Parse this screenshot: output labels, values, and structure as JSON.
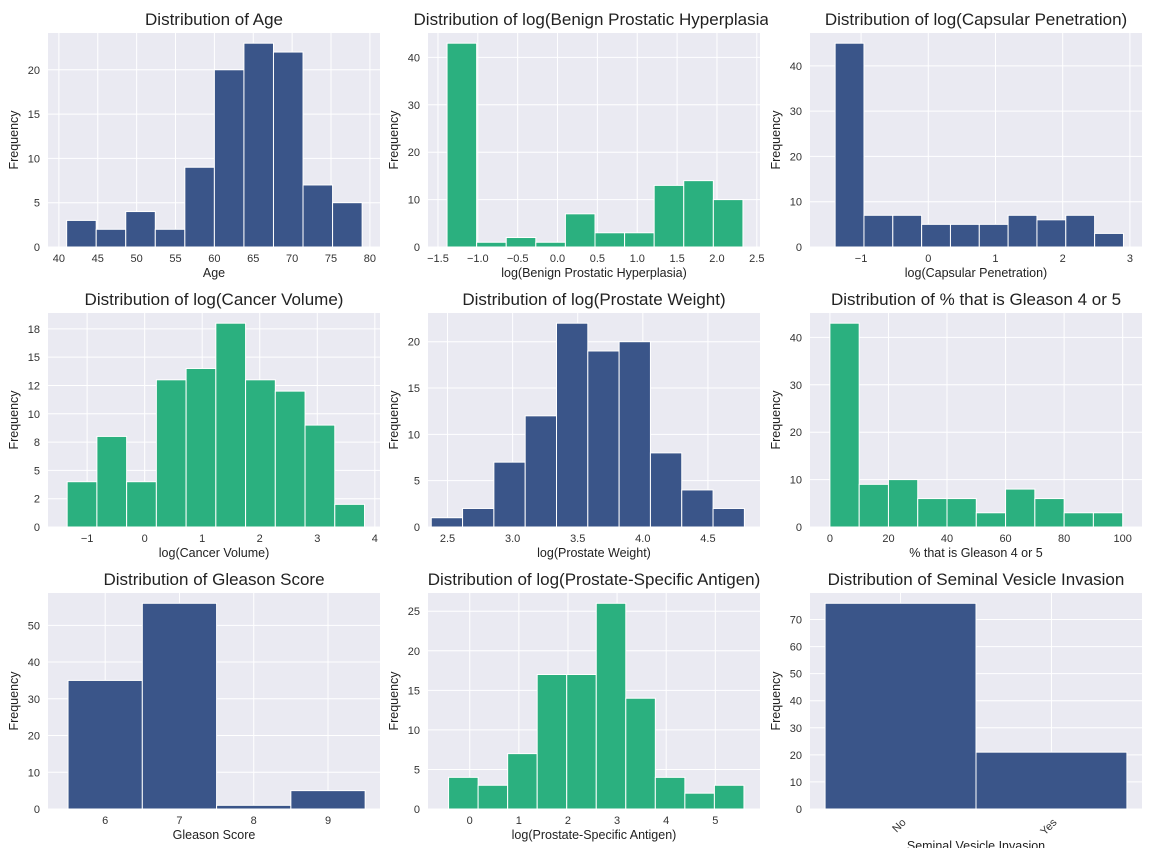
{
  "style": {
    "background": "#eaeaf2",
    "grid": "#ffffff",
    "blue": "#3a5589",
    "green": "#2bb07f"
  },
  "chart_data": [
    {
      "type": "bar",
      "title": "Distribution of Age",
      "xlabel": "Age",
      "ylabel": "Frequency",
      "color": "#3a5589",
      "bin_range": [
        41,
        79
      ],
      "values": [
        3,
        2,
        4,
        2,
        9,
        20,
        23,
        22,
        7,
        5
      ],
      "xlim": [
        38.6,
        81.3
      ],
      "ylim": [
        0,
        24.15
      ],
      "xticks": [
        40,
        45,
        50,
        55,
        60,
        65,
        70,
        75,
        80
      ],
      "xtick_labels": [
        "40",
        "45",
        "50",
        "55",
        "60",
        "65",
        "70",
        "75",
        "80"
      ],
      "yticks": [
        0,
        5,
        10,
        15,
        20
      ],
      "ytick_labels": [
        "0",
        "5",
        "10",
        "15",
        "20"
      ],
      "grid": true
    },
    {
      "type": "bar",
      "title": "Distribution of log(Benign Prostatic Hyperplasia)",
      "xlabel": "log(Benign Prostatic Hyperplasia)",
      "ylabel": "Frequency",
      "color": "#2bb07f",
      "bin_range": [
        -1.386,
        2.326
      ],
      "values": [
        43,
        1,
        2,
        1,
        7,
        3,
        3,
        13,
        14,
        10
      ],
      "xlim": [
        -1.625,
        2.54
      ],
      "ylim": [
        0,
        45.15
      ],
      "xticks": [
        -1.5,
        -1,
        -0.5,
        0,
        0.5,
        1,
        1.5,
        2,
        2.5
      ],
      "xtick_labels": [
        "−1.5",
        "−1.0",
        "−0.5",
        "0.0",
        "0.5",
        "1.0",
        "1.5",
        "2.0",
        "2.5"
      ],
      "yticks": [
        0,
        10,
        20,
        30,
        40
      ],
      "ytick_labels": [
        "0",
        "10",
        "20",
        "30",
        "40"
      ],
      "grid": true
    },
    {
      "type": "bar",
      "title": "Distribution of log(Capsular Penetration)",
      "xlabel": "log(Capsular Penetration)",
      "ylabel": "Frequency",
      "color": "#3a5589",
      "bin_range": [
        -1.386,
        2.904
      ],
      "values": [
        45,
        7,
        7,
        5,
        5,
        5,
        7,
        6,
        7,
        3
      ],
      "xlim": [
        -1.76,
        3.18
      ],
      "ylim": [
        0,
        47.25
      ],
      "xticks": [
        -1,
        0,
        1,
        2,
        3
      ],
      "xtick_labels": [
        "−1",
        "0",
        "1",
        "2",
        "3"
      ],
      "yticks": [
        0,
        10,
        20,
        30,
        40
      ],
      "ytick_labels": [
        "0",
        "10",
        "20",
        "30",
        "40"
      ],
      "grid": true
    },
    {
      "type": "bar",
      "title": "Distribution of log(Cancer Volume)",
      "xlabel": "log(Cancer Volume)",
      "ylabel": "Frequency",
      "color": "#2bb07f",
      "bin_range": [
        -1.347,
        3.821
      ],
      "values": [
        4,
        8,
        4,
        13,
        14,
        18,
        13,
        12,
        9,
        2
      ],
      "xlim": [
        -1.68,
        4.09
      ],
      "ylim": [
        0,
        18.9
      ],
      "xticks": [
        -1,
        0,
        1,
        2,
        3,
        4
      ],
      "xtick_labels": [
        "−1",
        "0",
        "1",
        "2",
        "3",
        "4"
      ],
      "yticks": [
        0,
        2.5,
        5,
        7.5,
        10,
        12.5,
        15,
        17.5
      ],
      "ytick_labels": [
        "0",
        "2",
        "5",
        "8",
        "10",
        "12",
        "15",
        "18"
      ],
      "grid": true
    },
    {
      "type": "bar",
      "title": "Distribution of log(Prostate Weight)",
      "xlabel": "log(Prostate Weight)",
      "ylabel": "Frequency",
      "color": "#3a5589",
      "bin_range": [
        2.375,
        4.78
      ],
      "values": [
        1,
        2,
        7,
        12,
        22,
        19,
        20,
        8,
        4,
        2
      ],
      "xlim": [
        2.35,
        4.9
      ],
      "ylim": [
        0,
        23.1
      ],
      "xticks": [
        2.5,
        3,
        3.5,
        4,
        4.5
      ],
      "xtick_labels": [
        "2.5",
        "3.0",
        "3.5",
        "4.0",
        "4.5"
      ],
      "yticks": [
        0,
        5,
        10,
        15,
        20
      ],
      "ytick_labels": [
        "0",
        "5",
        "10",
        "15",
        "20"
      ],
      "grid": true
    },
    {
      "type": "bar",
      "title": "Distribution of % that is Gleason 4 or 5",
      "xlabel": "% that is Gleason 4 or 5",
      "ylabel": "Frequency",
      "color": "#2bb07f",
      "bin_range": [
        0,
        100
      ],
      "values": [
        43,
        9,
        10,
        6,
        6,
        3,
        8,
        6,
        3,
        3
      ],
      "xlim": [
        -6.8,
        106.6
      ],
      "ylim": [
        0,
        45.15
      ],
      "xticks": [
        0,
        20,
        40,
        60,
        80,
        100
      ],
      "xtick_labels": [
        "0",
        "20",
        "40",
        "60",
        "80",
        "100"
      ],
      "yticks": [
        0,
        10,
        20,
        30,
        40
      ],
      "ytick_labels": [
        "0",
        "10",
        "20",
        "30",
        "40"
      ],
      "grid": true
    },
    {
      "type": "bar",
      "title": "Distribution of Gleason Score",
      "xlabel": "Gleason Score",
      "ylabel": "Frequency",
      "color": "#3a5589",
      "bin_range": [
        5.5,
        9.5
      ],
      "values": [
        35,
        56,
        1,
        5
      ],
      "xlim": [
        5.23,
        9.7
      ],
      "ylim": [
        0,
        58.8
      ],
      "xticks": [
        6,
        7,
        8,
        9
      ],
      "xtick_labels": [
        "6",
        "7",
        "8",
        "9"
      ],
      "yticks": [
        0,
        10,
        20,
        30,
        40,
        50
      ],
      "ytick_labels": [
        "0",
        "10",
        "20",
        "30",
        "40",
        "50"
      ],
      "grid": true
    },
    {
      "type": "bar",
      "title": "Distribution of log(Prostate-Specific Antigen)",
      "xlabel": "log(Prostate-Specific Antigen)",
      "ylabel": "Frequency",
      "color": "#2bb07f",
      "bin_range": [
        -0.431,
        5.583
      ],
      "values": [
        4,
        3,
        7,
        17,
        17,
        26,
        14,
        4,
        2,
        3
      ],
      "xlim": [
        -0.85,
        5.91
      ],
      "ylim": [
        0,
        27.3
      ],
      "xticks": [
        0,
        1,
        2,
        3,
        4,
        5
      ],
      "xtick_labels": [
        "0",
        "1",
        "2",
        "3",
        "4",
        "5"
      ],
      "yticks": [
        0,
        5,
        10,
        15,
        20,
        25
      ],
      "ytick_labels": [
        "0",
        "5",
        "10",
        "15",
        "20",
        "25"
      ],
      "grid": true
    },
    {
      "type": "bar",
      "title": "Distribution of Seminal Vesicle Invasion",
      "xlabel": "Seminal Vesicle Invasion",
      "ylabel": "Frequency",
      "color": "#3a5589",
      "categories": [
        "No",
        "Yes"
      ],
      "values": [
        76,
        21
      ],
      "bin_range": [
        -0.5,
        1.5
      ],
      "xlim": [
        -0.6,
        1.6
      ],
      "ylim": [
        0,
        79.8
      ],
      "xticks": [
        0,
        1
      ],
      "xtick_labels": [
        "No",
        "Yes"
      ],
      "xtick_rotation": 45,
      "yticks": [
        0,
        10,
        20,
        30,
        40,
        50,
        60,
        70
      ],
      "ytick_labels": [
        "0",
        "10",
        "20",
        "30",
        "40",
        "50",
        "60",
        "70"
      ],
      "grid": true
    }
  ]
}
